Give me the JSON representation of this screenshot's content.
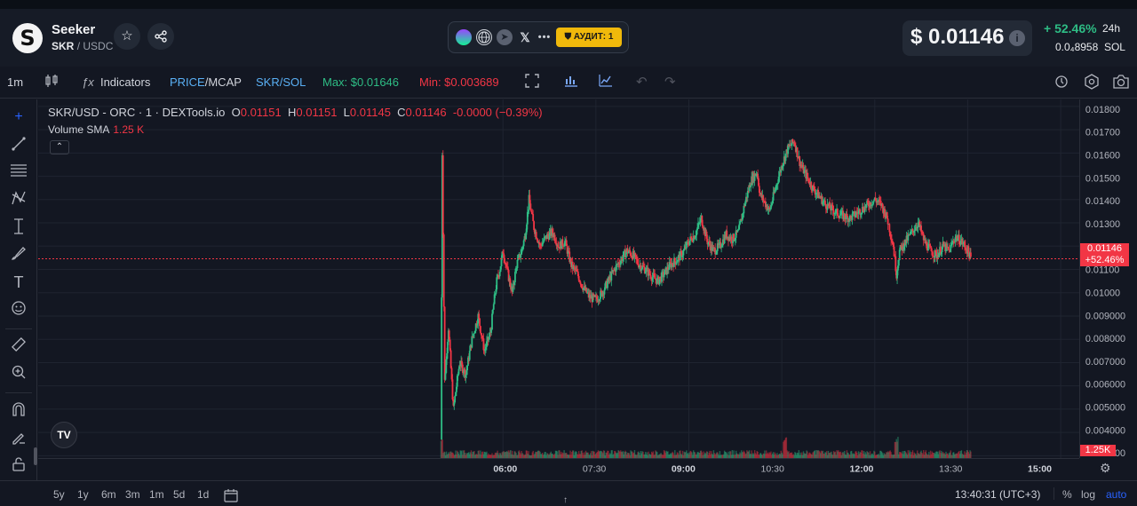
{
  "header": {
    "token_name": "Seeker",
    "token_symbol": "SKR",
    "separator": "/",
    "quote_symbol": "USDC",
    "audit_label": "АУДИТ: 1",
    "price": "$ 0.01146",
    "change": "+ 52.46%",
    "period": "24h",
    "sol_price": "0.0₄8958",
    "sol_label": "SOL",
    "logo_letter": "S"
  },
  "toolbar": {
    "interval": "1m",
    "indicators": "Indicators",
    "price_label": "PRICE",
    "mcap_label": "/MCAP",
    "pair_toggle": "SKR/SOL",
    "max": "Max: $0.01646",
    "min": "Min: $0.003689"
  },
  "legend": {
    "title": "SKR/USD - ORC · 1 · DEXTools.io",
    "o_label": "O",
    "o": "0.01151",
    "h_label": "H",
    "h": "0.01151",
    "l_label": "L",
    "l": "0.01145",
    "c_label": "C",
    "c": "0.01146",
    "delta": "-0.0000 (−0.39%)",
    "volume_label": "Volume SMA",
    "volume": "1.25 K"
  },
  "axis": {
    "price_label_value": "0.01146",
    "price_label_change": "+52.46%",
    "volume_label": "1.25K"
  },
  "bottom": {
    "ranges": [
      "5y",
      "1y",
      "6m",
      "3m",
      "1m",
      "5d",
      "1d"
    ],
    "clock": "13:40:31 (UTC+3)",
    "percent": "%",
    "log": "log",
    "auto": "auto"
  },
  "colors": {
    "up": "#2ebd85",
    "down": "#f23645",
    "accent": "#2962ff",
    "background": "#131722"
  },
  "chart_data": {
    "type": "candlestick",
    "y_ticks": [
      "0.01800",
      "0.01700",
      "0.01600",
      "0.01500",
      "0.01400",
      "0.01300",
      "0.01200",
      "0.01100",
      "0.01000",
      "0.009000",
      "0.008000",
      "0.007000",
      "0.006000",
      "0.005000",
      "0.004000",
      "0.003000"
    ],
    "y_tick_values": [
      0.018,
      0.017,
      0.016,
      0.015,
      0.014,
      0.013,
      0.012,
      0.011,
      0.01,
      0.009,
      0.008,
      0.007,
      0.006,
      0.005,
      0.004,
      0.003
    ],
    "x_ticks": [
      "06:00",
      "07:30",
      "09:00",
      "10:30",
      "12:00",
      "13:30",
      "15:00"
    ],
    "x_tick_hours": [
      6,
      7.5,
      9,
      10.5,
      12,
      13.5,
      15
    ],
    "x_tick_bold": [
      true,
      false,
      true,
      false,
      true,
      false,
      true
    ],
    "ylim": [
      0.0029,
      0.0183
    ],
    "xlim_hours": [
      -1.5,
      15.3
    ],
    "last_price": 0.01146,
    "series": [
      {
        "name": "price",
        "points": [
          [
            5.0,
            0.0037
          ],
          [
            5.02,
            0.0159
          ],
          [
            5.06,
            0.0062
          ],
          [
            5.12,
            0.0085
          ],
          [
            5.2,
            0.005
          ],
          [
            5.3,
            0.007
          ],
          [
            5.4,
            0.0065
          ],
          [
            5.5,
            0.008
          ],
          [
            5.6,
            0.009
          ],
          [
            5.7,
            0.0075
          ],
          [
            5.8,
            0.0083
          ],
          [
            5.85,
            0.0095
          ],
          [
            5.9,
            0.0105
          ],
          [
            5.95,
            0.011
          ],
          [
            6.0,
            0.0118
          ],
          [
            6.08,
            0.0108
          ],
          [
            6.15,
            0.01
          ],
          [
            6.22,
            0.0112
          ],
          [
            6.3,
            0.0118
          ],
          [
            6.36,
            0.0125
          ],
          [
            6.42,
            0.014
          ],
          [
            6.5,
            0.0128
          ],
          [
            6.6,
            0.012
          ],
          [
            6.7,
            0.0124
          ],
          [
            6.8,
            0.0126
          ],
          [
            6.9,
            0.012
          ],
          [
            7.0,
            0.0122
          ],
          [
            7.1,
            0.0112
          ],
          [
            7.2,
            0.0108
          ],
          [
            7.3,
            0.0102
          ],
          [
            7.4,
            0.0098
          ],
          [
            7.5,
            0.0097
          ],
          [
            7.6,
            0.01
          ],
          [
            7.7,
            0.0105
          ],
          [
            7.8,
            0.011
          ],
          [
            7.9,
            0.0114
          ],
          [
            8.0,
            0.0118
          ],
          [
            8.1,
            0.0116
          ],
          [
            8.2,
            0.0112
          ],
          [
            8.3,
            0.011
          ],
          [
            8.4,
            0.0107
          ],
          [
            8.5,
            0.0105
          ],
          [
            8.6,
            0.0108
          ],
          [
            8.7,
            0.0112
          ],
          [
            8.8,
            0.0114
          ],
          [
            8.9,
            0.0117
          ],
          [
            9.0,
            0.0122
          ],
          [
            9.1,
            0.0125
          ],
          [
            9.2,
            0.0132
          ],
          [
            9.3,
            0.0122
          ],
          [
            9.4,
            0.0118
          ],
          [
            9.5,
            0.012
          ],
          [
            9.6,
            0.0125
          ],
          [
            9.7,
            0.0123
          ],
          [
            9.8,
            0.0126
          ],
          [
            9.9,
            0.0138
          ],
          [
            10.0,
            0.0148
          ],
          [
            10.1,
            0.0152
          ],
          [
            10.15,
            0.0142
          ],
          [
            10.2,
            0.014
          ],
          [
            10.3,
            0.0135
          ],
          [
            10.4,
            0.0145
          ],
          [
            10.5,
            0.0155
          ],
          [
            10.6,
            0.0162
          ],
          [
            10.7,
            0.0165
          ],
          [
            10.8,
            0.0155
          ],
          [
            10.9,
            0.015
          ],
          [
            11.0,
            0.0145
          ],
          [
            11.2,
            0.0138
          ],
          [
            11.4,
            0.0134
          ],
          [
            11.6,
            0.0132
          ],
          [
            11.8,
            0.0136
          ],
          [
            12.0,
            0.014
          ],
          [
            12.1,
            0.0138
          ],
          [
            12.2,
            0.0132
          ],
          [
            12.3,
            0.012
          ],
          [
            12.35,
            0.0108
          ],
          [
            12.4,
            0.0118
          ],
          [
            12.5,
            0.0122
          ],
          [
            12.6,
            0.0126
          ],
          [
            12.7,
            0.013
          ],
          [
            12.8,
            0.0122
          ],
          [
            12.9,
            0.0118
          ],
          [
            13.0,
            0.0116
          ],
          [
            13.1,
            0.012
          ],
          [
            13.2,
            0.0118
          ],
          [
            13.3,
            0.0124
          ],
          [
            13.4,
            0.0122
          ],
          [
            13.5,
            0.0118
          ],
          [
            13.55,
            0.01146
          ]
        ]
      }
    ],
    "volume": {
      "x_start_hours": 5.0,
      "x_end_hours": 13.55,
      "peak_hours": [
        5.0,
        10.55,
        12.35
      ]
    }
  }
}
